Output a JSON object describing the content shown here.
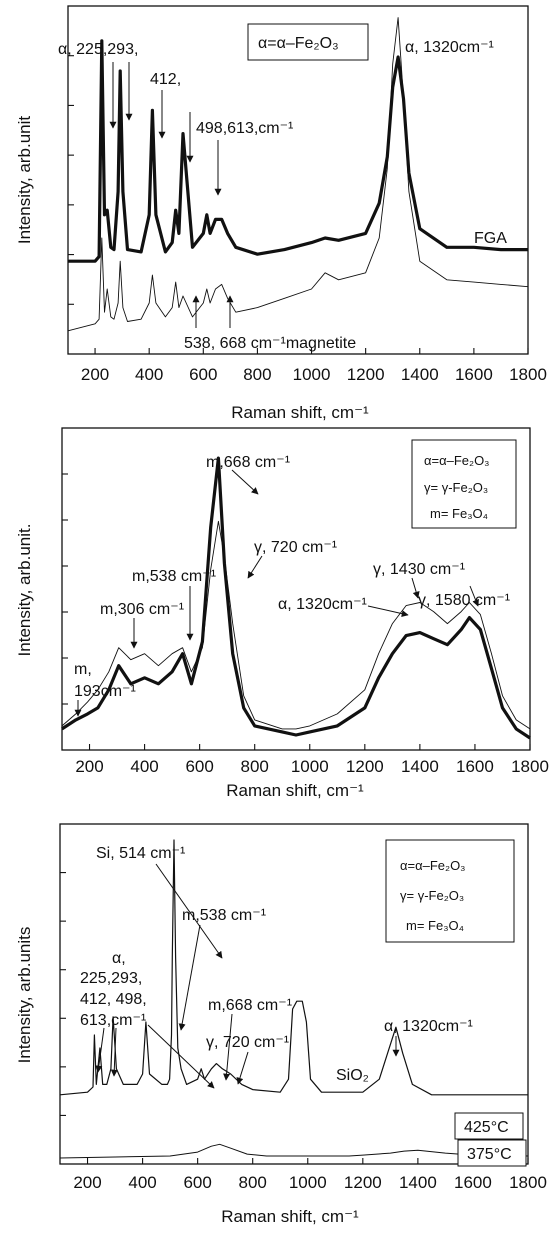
{
  "chart_data": [
    {
      "type": "line",
      "panel": "top",
      "xlabel": "Raman shift, cm⁻¹",
      "ylabel": "Intensity, arb.unit",
      "xlim": [
        100,
        1800
      ],
      "xticks": [
        200,
        400,
        600,
        800,
        1000,
        1200,
        1400,
        1600,
        1800
      ],
      "grid": false,
      "legend": {
        "placement": "top-center",
        "entries": [
          "α=α–Fe₂O₃"
        ]
      },
      "series_labels": [
        "FGA"
      ],
      "annotations": [
        "α, 225,293,",
        "412,",
        "498,613,cm⁻¹",
        "α, 1320cm⁻¹",
        "FGA",
        "538, 668 cm⁻¹magnetite"
      ],
      "series": [
        {
          "style": "thick",
          "x": [
            100,
            200,
            215,
            225,
            235,
            245,
            258,
            270,
            285,
            293,
            303,
            320,
            370,
            400,
            412,
            425,
            460,
            485,
            498,
            510,
            525,
            560,
            600,
            613,
            625,
            645,
            668,
            690,
            720,
            800,
            900,
            1000,
            1050,
            1100,
            1200,
            1250,
            1280,
            1300,
            1320,
            1340,
            1360,
            1400,
            1500,
            1600,
            1700,
            1800
          ],
          "y": [
            0,
            0,
            0.02,
            0.95,
            0.2,
            0.22,
            0.06,
            0.05,
            0.3,
            0.82,
            0.3,
            0.05,
            0.04,
            0.2,
            0.65,
            0.2,
            0.04,
            0.08,
            0.22,
            0.12,
            0.55,
            0.06,
            0.12,
            0.2,
            0.12,
            0.18,
            0.18,
            0.12,
            0.06,
            0.03,
            0.05,
            0.08,
            0.1,
            0.09,
            0.12,
            0.25,
            0.45,
            0.75,
            0.88,
            0.7,
            0.38,
            0.14,
            0.06,
            0.06,
            0.05,
            0.05
          ]
        },
        {
          "style": "thin",
          "x": [
            100,
            200,
            215,
            225,
            235,
            245,
            258,
            270,
            285,
            293,
            303,
            320,
            370,
            400,
            412,
            425,
            460,
            485,
            498,
            510,
            525,
            560,
            600,
            613,
            625,
            645,
            668,
            690,
            720,
            800,
            900,
            1000,
            1050,
            1100,
            1200,
            1250,
            1280,
            1300,
            1320,
            1340,
            1360,
            1400,
            1500,
            1600,
            1700,
            1800
          ],
          "y": [
            -0.3,
            -0.27,
            -0.25,
            0.1,
            -0.22,
            -0.12,
            -0.24,
            -0.25,
            -0.18,
            0.0,
            -0.2,
            -0.26,
            -0.25,
            -0.18,
            -0.06,
            -0.18,
            -0.24,
            -0.2,
            -0.09,
            -0.2,
            -0.15,
            -0.24,
            -0.18,
            -0.12,
            -0.18,
            -0.12,
            -0.1,
            -0.16,
            -0.22,
            -0.2,
            -0.16,
            -0.12,
            -0.05,
            -0.08,
            -0.05,
            0.1,
            0.4,
            0.85,
            1.05,
            0.7,
            0.3,
            0.0,
            -0.08,
            -0.09,
            -0.1,
            -0.11
          ]
        }
      ]
    },
    {
      "type": "line",
      "panel": "middle",
      "xlabel": "Raman shift, cm⁻¹",
      "ylabel": "Intensity, arb.unit.",
      "xlim": [
        100,
        1800
      ],
      "xticks": [
        200,
        400,
        600,
        800,
        1000,
        1200,
        1400,
        1600,
        1800
      ],
      "grid": false,
      "legend": {
        "placement": "top-right",
        "entries": [
          "α=α–Fe₂O₃",
          "γ= γ-Fe₂O₃",
          "m= Fe₃O₄"
        ]
      },
      "annotations": [
        "m,668 cm⁻¹",
        "γ, 720 cm⁻¹",
        "m,538 cm⁻¹",
        "m,306 cm⁻¹",
        "m,",
        "193cm⁻¹",
        "α, 1320cm⁻¹",
        "γ, 1430 cm⁻¹",
        "γ, 1580 cm⁻¹"
      ],
      "series": [
        {
          "style": "thick",
          "x": [
            100,
            150,
            193,
            230,
            270,
            306,
            350,
            400,
            450,
            500,
            538,
            570,
            610,
            640,
            668,
            690,
            720,
            760,
            800,
            900,
            950,
            1000,
            1100,
            1200,
            1250,
            1300,
            1350,
            1400,
            1450,
            1500,
            1550,
            1580,
            1620,
            1660,
            1700,
            1750,
            1800
          ],
          "y": [
            0.05,
            0.08,
            0.1,
            0.12,
            0.18,
            0.26,
            0.2,
            0.22,
            0.2,
            0.24,
            0.3,
            0.2,
            0.34,
            0.72,
            0.95,
            0.6,
            0.3,
            0.12,
            0.06,
            0.04,
            0.03,
            0.04,
            0.06,
            0.12,
            0.22,
            0.3,
            0.36,
            0.37,
            0.35,
            0.33,
            0.38,
            0.42,
            0.38,
            0.25,
            0.12,
            0.05,
            0.02
          ]
        },
        {
          "style": "thin",
          "x": [
            100,
            150,
            193,
            230,
            270,
            306,
            350,
            400,
            450,
            500,
            538,
            570,
            610,
            640,
            668,
            690,
            720,
            760,
            800,
            900,
            950,
            1000,
            1100,
            1200,
            1250,
            1300,
            1350,
            1400,
            1450,
            1500,
            1550,
            1580,
            1620,
            1660,
            1700,
            1750,
            1800
          ],
          "y": [
            0.06,
            0.1,
            0.14,
            0.18,
            0.24,
            0.32,
            0.28,
            0.3,
            0.26,
            0.3,
            0.32,
            0.24,
            0.32,
            0.58,
            0.74,
            0.62,
            0.4,
            0.16,
            0.08,
            0.05,
            0.05,
            0.06,
            0.1,
            0.18,
            0.3,
            0.4,
            0.46,
            0.47,
            0.44,
            0.4,
            0.44,
            0.47,
            0.43,
            0.3,
            0.16,
            0.08,
            0.05
          ]
        }
      ]
    },
    {
      "type": "line",
      "panel": "bottom",
      "xlabel": "Raman shift, cm⁻¹",
      "ylabel": "Intensity, arb.units",
      "xlim": [
        100,
        1800
      ],
      "xticks": [
        200,
        400,
        600,
        800,
        1000,
        1200,
        1400,
        1600,
        1800
      ],
      "grid": false,
      "legend": {
        "placement": "top-right",
        "entries": [
          "α=α–Fe₂O₃",
          "γ= γ-Fe₂O₃",
          "m= Fe₃O₄"
        ]
      },
      "series_labels": [
        "425°C",
        "375°C"
      ],
      "annotations": [
        "Si, 514 cm⁻¹",
        "m,538 cm⁻¹",
        "α,",
        "225,293,",
        "412, 498,",
        "613,cm⁻¹",
        "m,668 cm⁻¹",
        "γ, 720 cm⁻¹",
        "SiO₂",
        "α, 1320cm⁻¹"
      ],
      "series": [
        {
          "name": "425°C",
          "x": [
            100,
            200,
            220,
            225,
            232,
            245,
            255,
            270,
            285,
            293,
            305,
            330,
            380,
            400,
            412,
            425,
            470,
            490,
            498,
            505,
            508,
            514,
            520,
            528,
            540,
            560,
            600,
            613,
            625,
            650,
            668,
            690,
            720,
            760,
            800,
            900,
            930,
            945,
            960,
            980,
            995,
            1010,
            1050,
            1200,
            1260,
            1290,
            1320,
            1345,
            1380,
            1450,
            1600,
            1800
          ],
          "y": [
            0.02,
            0.03,
            0.05,
            0.25,
            0.06,
            0.2,
            0.06,
            0.06,
            0.12,
            0.32,
            0.12,
            0.06,
            0.06,
            0.1,
            0.3,
            0.1,
            0.06,
            0.06,
            0.08,
            0.25,
            0.55,
            1.0,
            0.55,
            0.2,
            0.12,
            0.06,
            0.08,
            0.12,
            0.08,
            0.12,
            0.14,
            0.12,
            0.1,
            0.06,
            0.04,
            0.03,
            0.08,
            0.35,
            0.38,
            0.38,
            0.3,
            0.08,
            0.03,
            0.03,
            0.08,
            0.18,
            0.28,
            0.18,
            0.06,
            0.02,
            0.02,
            0.02
          ]
        },
        {
          "name": "375°C",
          "x": [
            100,
            300,
            500,
            600,
            650,
            680,
            720,
            780,
            850,
            1000,
            1150,
            1200,
            1300,
            1350,
            1400,
            1500,
            1600,
            1800
          ],
          "y": [
            0.0,
            0.01,
            0.02,
            0.06,
            0.12,
            0.14,
            0.1,
            0.04,
            0.02,
            0.02,
            0.02,
            0.03,
            0.05,
            0.07,
            0.08,
            0.05,
            0.03,
            0.02
          ]
        }
      ]
    }
  ]
}
